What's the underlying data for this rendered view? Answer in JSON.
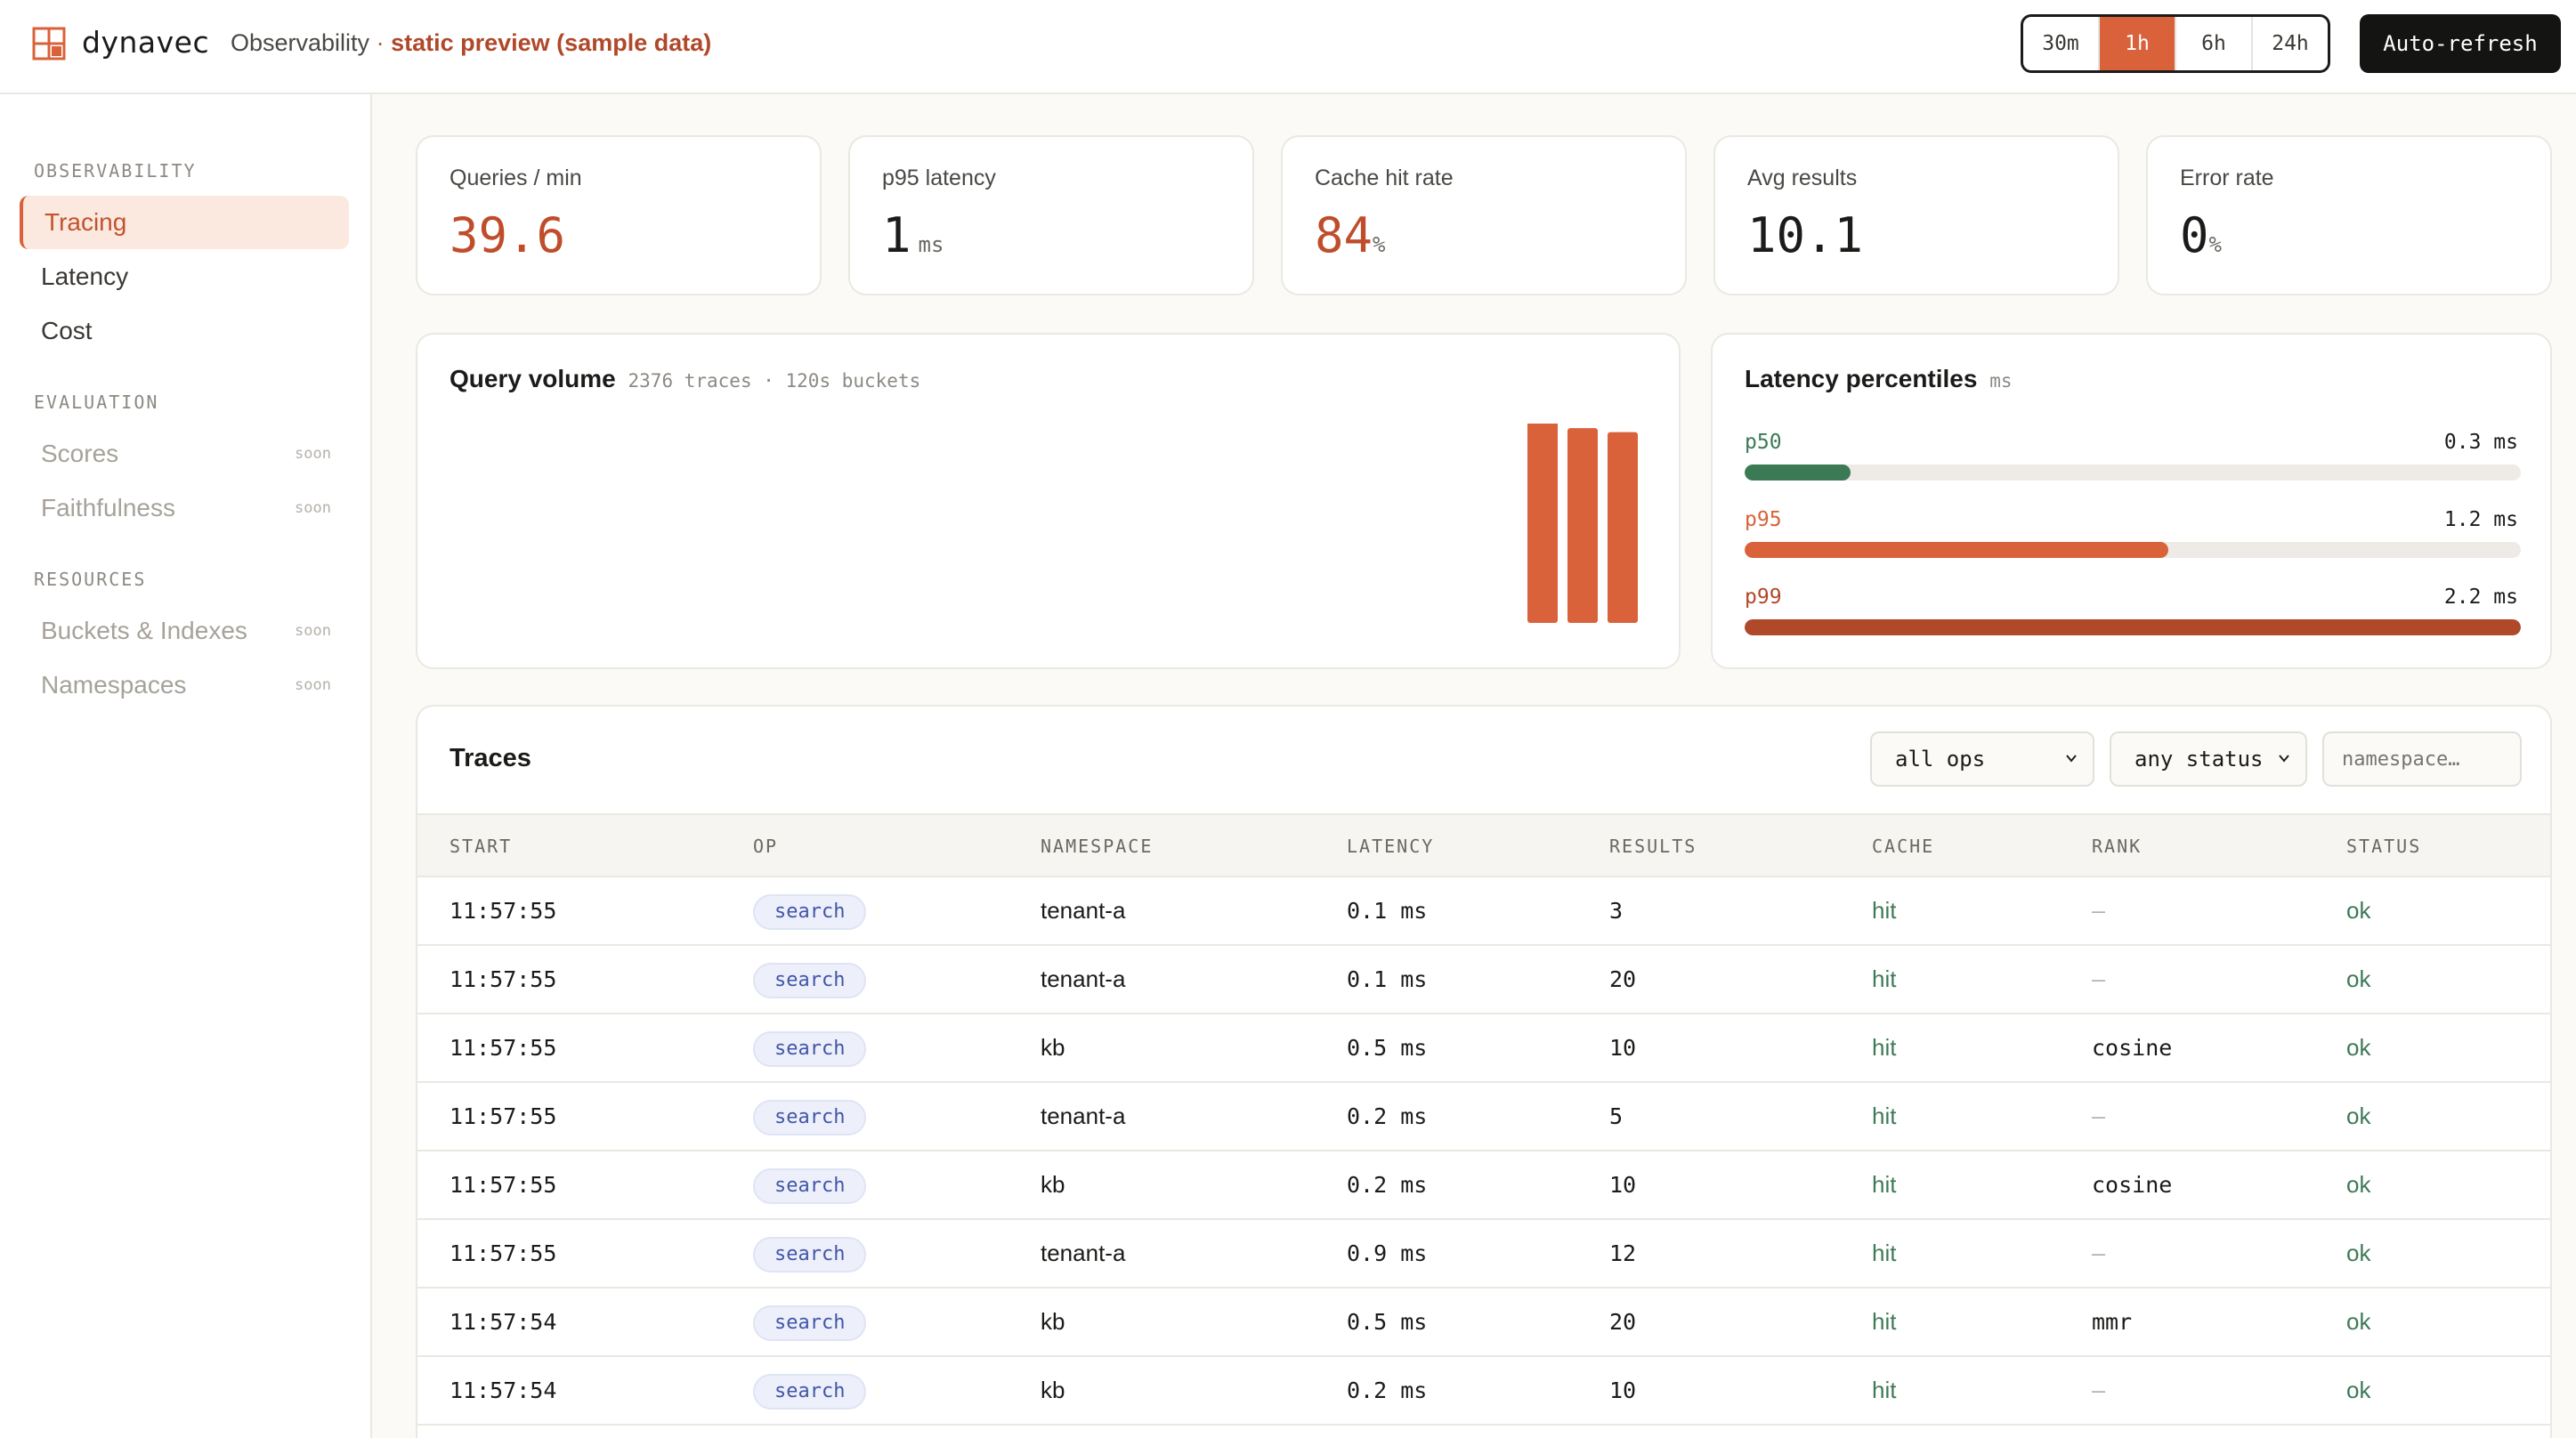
{
  "header": {
    "brand": "dynavec",
    "section": "Observability",
    "separator": "·",
    "preview": "static preview (sample data)",
    "ranges": [
      "30m",
      "1h",
      "6h",
      "24h"
    ],
    "active_range": "1h",
    "auto_refresh_label": "Auto-refresh"
  },
  "sidebar": {
    "sections": [
      {
        "label": "OBSERVABILITY",
        "items": [
          {
            "label": "Tracing",
            "state": "active"
          },
          {
            "label": "Latency",
            "state": "normal"
          },
          {
            "label": "Cost",
            "state": "normal"
          }
        ]
      },
      {
        "label": "EVALUATION",
        "items": [
          {
            "label": "Scores",
            "state": "disabled",
            "badge": "soon"
          },
          {
            "label": "Faithfulness",
            "state": "disabled",
            "badge": "soon"
          }
        ]
      },
      {
        "label": "RESOURCES",
        "items": [
          {
            "label": "Buckets & Indexes",
            "state": "disabled",
            "badge": "soon"
          },
          {
            "label": "Namespaces",
            "state": "disabled",
            "badge": "soon"
          }
        ]
      }
    ]
  },
  "kpis": [
    {
      "label": "Queries / min",
      "value": "39.6",
      "unit": ""
    },
    {
      "label": "p95 latency",
      "value": "1",
      "unit": "ms"
    },
    {
      "label": "Cache hit rate",
      "value": "84",
      "unit": "%"
    },
    {
      "label": "Avg results",
      "value": "10.1",
      "unit": ""
    },
    {
      "label": "Error rate",
      "value": "0",
      "unit": "%"
    }
  ],
  "query_volume": {
    "title": "Query volume",
    "subtitle": "2376 traces · 120s buckets"
  },
  "chart_data": {
    "type": "bar",
    "title": "Query volume",
    "values": [
      100,
      96,
      94
    ],
    "ylim": [
      0,
      100
    ],
    "color": "#d9623a"
  },
  "latency": {
    "title": "Latency percentiles",
    "unit": "ms",
    "max_ms": 2.2,
    "rows": [
      {
        "label": "p50",
        "value": 0.3,
        "display": "0.3 ms",
        "color": "#3b7a55"
      },
      {
        "label": "p95",
        "value": 1.2,
        "display": "1.2 ms",
        "color": "#d9623a"
      },
      {
        "label": "p99",
        "value": 2.2,
        "display": "2.2 ms",
        "color": "#b0482a"
      }
    ]
  },
  "traces": {
    "title": "Traces",
    "filters": {
      "op": "all ops",
      "status": "any status",
      "namespace_placeholder": "namespace…"
    },
    "columns": [
      "START",
      "OP",
      "NAMESPACE",
      "LATENCY",
      "RESULTS",
      "CACHE",
      "RANK",
      "STATUS"
    ],
    "rows": [
      {
        "start": "11:57:55",
        "op": "search",
        "namespace": "tenant-a",
        "latency": "0.1 ms",
        "results": "3",
        "cache": "hit",
        "rank": "—",
        "status": "ok"
      },
      {
        "start": "11:57:55",
        "op": "search",
        "namespace": "tenant-a",
        "latency": "0.1 ms",
        "results": "20",
        "cache": "hit",
        "rank": "—",
        "status": "ok"
      },
      {
        "start": "11:57:55",
        "op": "search",
        "namespace": "kb",
        "latency": "0.5 ms",
        "results": "10",
        "cache": "hit",
        "rank": "cosine",
        "status": "ok"
      },
      {
        "start": "11:57:55",
        "op": "search",
        "namespace": "tenant-a",
        "latency": "0.2 ms",
        "results": "5",
        "cache": "hit",
        "rank": "—",
        "status": "ok"
      },
      {
        "start": "11:57:55",
        "op": "search",
        "namespace": "kb",
        "latency": "0.2 ms",
        "results": "10",
        "cache": "hit",
        "rank": "cosine",
        "status": "ok"
      },
      {
        "start": "11:57:55",
        "op": "search",
        "namespace": "tenant-a",
        "latency": "0.9 ms",
        "results": "12",
        "cache": "hit",
        "rank": "—",
        "status": "ok"
      },
      {
        "start": "11:57:54",
        "op": "search",
        "namespace": "kb",
        "latency": "0.5 ms",
        "results": "20",
        "cache": "hit",
        "rank": "mmr",
        "status": "ok"
      },
      {
        "start": "11:57:54",
        "op": "search",
        "namespace": "kb",
        "latency": "0.2 ms",
        "results": "10",
        "cache": "hit",
        "rank": "—",
        "status": "ok"
      }
    ]
  }
}
